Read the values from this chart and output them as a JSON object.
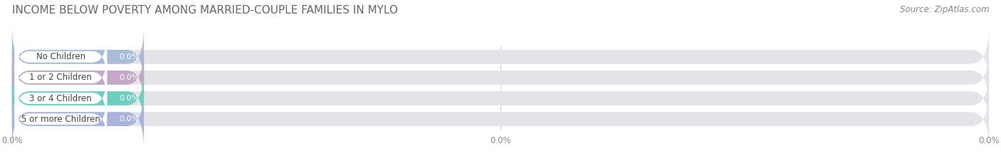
{
  "title": "INCOME BELOW POVERTY AMONG MARRIED-COUPLE FAMILIES IN MYLO",
  "source": "Source: ZipAtlas.com",
  "categories": [
    "No Children",
    "1 or 2 Children",
    "3 or 4 Children",
    "5 or more Children"
  ],
  "values": [
    0.0,
    0.0,
    0.0,
    0.0
  ],
  "bar_colors": [
    "#a8bcd8",
    "#c4a8c8",
    "#6ecec0",
    "#a8b4dc"
  ],
  "background_color": "#ffffff",
  "bar_bg_color": "#e4e4e8",
  "figsize": [
    14.06,
    2.33
  ],
  "dpi": 100,
  "title_fontsize": 11,
  "label_fontsize": 8.5,
  "value_fontsize": 8,
  "source_fontsize": 8.5,
  "tick_fontsize": 8.5,
  "xtick_labels": [
    "0.0%",
    "0.0%",
    "0.0%"
  ],
  "xtick_positions": [
    0,
    50,
    100
  ]
}
